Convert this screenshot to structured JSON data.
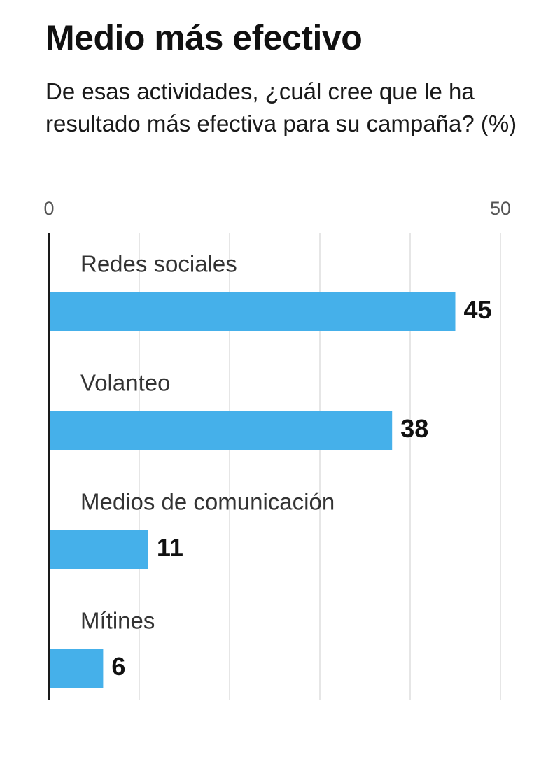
{
  "header": {
    "title": "Medio más efectivo",
    "subtitle": "De esas actividades, ¿cuál cree que le ha resultado más efectiva para su campaña? (%)"
  },
  "chart_data": {
    "type": "bar",
    "orientation": "horizontal",
    "title": "Medio más efectivo",
    "subtitle": "De esas actividades, ¿cuál cree que le ha resultado más efectiva para su campaña? (%)",
    "categories": [
      "Redes sociales",
      "Volanteo",
      "Medios de comunicación",
      "Mítines"
    ],
    "values": [
      45,
      38,
      11,
      6
    ],
    "xlim": [
      0,
      50
    ],
    "ticks": [
      0,
      50
    ],
    "tick_labels": [
      "0",
      "50"
    ],
    "grid": true,
    "gridlines_every": 10,
    "legend": "none",
    "colors": {
      "bar": "#45b0ea",
      "grid": "#dddddd",
      "axis": "#1a1a1a"
    }
  }
}
